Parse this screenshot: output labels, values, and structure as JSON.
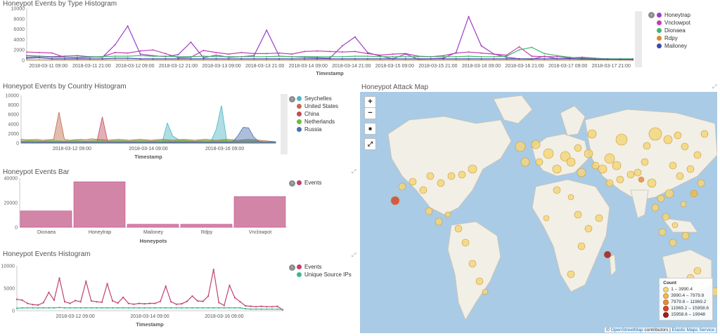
{
  "panels": {
    "type_histogram": {
      "title": "Honeypot Events by Type Histogram",
      "x_label": "Timestamp",
      "y_ticks": [
        "10000",
        "8000",
        "6000",
        "4000",
        "2000",
        "0"
      ],
      "x_ticks": [
        "2018-03-11 09:00",
        "2018-03-11 21:00",
        "2018-03-12 09:00",
        "2018-03-12 21:00",
        "2018-03-13 09:00",
        "2018-03-13 21:00",
        "2018-03-14 09:00",
        "2018-03-14 21:00",
        "2018-03-15 09:00",
        "2018-03-15 21:00",
        "2018-03-16 09:00",
        "2018-03-16 21:00",
        "2018-03-17 09:00",
        "2018-03-17 21:00"
      ],
      "legend": [
        {
          "label": "Honeytrap",
          "color": "#9b3fc6"
        },
        {
          "label": "Vnclowpot",
          "color": "#c23fb2"
        },
        {
          "label": "Dionaea",
          "color": "#3db86d"
        },
        {
          "label": "Rdpy",
          "color": "#d78c2b"
        },
        {
          "label": "Mailoney",
          "color": "#3f4aa8"
        }
      ]
    },
    "country_histogram": {
      "title": "Honeypot Events by Country Histogram",
      "x_label": "Timestamp",
      "y_ticks": [
        "10000",
        "8000",
        "6000",
        "4000",
        "2000",
        "0"
      ],
      "x_ticks": [
        "2018-03-12 09:00",
        "2018-03-14 09:00",
        "2018-03-16 09:00"
      ],
      "legend": [
        {
          "label": "Seychelles",
          "color": "#4bb6c4"
        },
        {
          "label": "United States",
          "color": "#c06a4e"
        },
        {
          "label": "China",
          "color": "#c24b5b"
        },
        {
          "label": "Netherlands",
          "color": "#6bbd3d"
        },
        {
          "label": "Russia",
          "color": "#4a6fb3"
        }
      ]
    },
    "events_bar": {
      "title": "Honeypot Events Bar",
      "x_label": "Honeypots",
      "y_ticks": [
        "40000",
        "20000",
        "0"
      ],
      "legend": [
        {
          "label": "Events",
          "color": "#c23f72"
        }
      ]
    },
    "events_histogram": {
      "title": "Honeypot Events Histogram",
      "x_label": "Timestamp",
      "y_ticks": [
        "10000",
        "5000",
        "0"
      ],
      "x_ticks": [
        "2018-03-12 09:00",
        "2018-03-14 09:00",
        "2018-03-16 09:00"
      ],
      "legend": [
        {
          "label": "Events",
          "color": "#c23f72"
        },
        {
          "label": "Unique Source IPs",
          "color": "#3db88a"
        }
      ]
    },
    "attack_map": {
      "title": "Honeypot Attack Map",
      "controls": {
        "zoom_in": "+",
        "zoom_out": "−",
        "draw": "■",
        "fit": "⤢"
      },
      "legend_title": "Count",
      "legend_ranges": [
        {
          "label": "1 – 3990.4",
          "color": "#f5d67a"
        },
        {
          "label": "3990.4 – 7979.8",
          "color": "#f1b84e"
        },
        {
          "label": "7979.8 – 11969.2",
          "color": "#ec8b3c"
        },
        {
          "label": "11969.2 – 15958.6",
          "color": "#d9472c"
        },
        {
          "label": "15958.6 – 19948",
          "color": "#a51d1d"
        }
      ],
      "attribution_prefix": "©",
      "attribution_osm": "OpenStreetMap",
      "attribution_mid": "contributors |",
      "attribution_ems": "Elastic Maps Service"
    }
  },
  "chart_data": [
    {
      "type": "line",
      "title": "Honeypot Events by Type Histogram",
      "xlabel": "Timestamp",
      "ylim": [
        0,
        10000
      ],
      "series": [
        {
          "name": "Honeytrap",
          "values": [
            900,
            800,
            700,
            800,
            900,
            700,
            600,
            3000,
            6600,
            1200,
            900,
            700,
            1100,
            3500,
            500,
            1000,
            600,
            700,
            900,
            5800,
            800,
            700,
            600,
            500,
            400,
            2800,
            4500,
            1500,
            800,
            300,
            1200,
            200,
            300,
            400,
            1500,
            8400,
            2800,
            1200,
            600,
            300,
            200,
            800,
            300,
            400,
            200,
            300,
            200,
            100,
            50
          ]
        },
        {
          "name": "Vnclowpot",
          "values": [
            1600,
            1500,
            1400,
            600,
            500,
            600,
            700,
            1500,
            1400,
            1800,
            2000,
            1300,
            500,
            600,
            1900,
            1500,
            1200,
            1500,
            1300,
            1300,
            1400,
            1200,
            1700,
            1800,
            1700,
            1600,
            1700,
            1300,
            1000,
            1200,
            1300,
            800,
            700,
            900,
            1400,
            1600,
            1400,
            1200,
            1000,
            2600,
            800,
            700,
            700,
            500,
            600,
            400,
            300,
            200,
            100
          ]
        },
        {
          "name": "Dionaea",
          "values": [
            600,
            700,
            600,
            600,
            600,
            700,
            700,
            800,
            800,
            900,
            800,
            800,
            700,
            700,
            800,
            700,
            700,
            700,
            700,
            700,
            800,
            700,
            700,
            700,
            700,
            700,
            800,
            800,
            700,
            700,
            700,
            700,
            700,
            700,
            700,
            800,
            700,
            700,
            800,
            2000,
            2500,
            1300,
            900,
            600,
            400,
            300,
            300,
            300,
            300
          ]
        },
        {
          "name": "Rdpy",
          "values": [
            100,
            100,
            100,
            100,
            100,
            100,
            100,
            100,
            100,
            100,
            100,
            100,
            100,
            100,
            100,
            100,
            100,
            100,
            100,
            100,
            100,
            100,
            100,
            100,
            100,
            100,
            100,
            100,
            100,
            100,
            100,
            100,
            100,
            100,
            100,
            100,
            100,
            100,
            100,
            100,
            100,
            100,
            100,
            100,
            100,
            100,
            100,
            100,
            100
          ]
        },
        {
          "name": "Mailoney",
          "values": [
            400,
            500,
            300,
            300,
            300,
            300,
            300,
            400,
            400,
            300,
            300,
            300,
            300,
            300,
            300,
            300,
            300,
            300,
            300,
            300,
            300,
            300,
            300,
            300,
            300,
            300,
            300,
            300,
            300,
            300,
            300,
            300,
            300,
            300,
            300,
            300,
            300,
            300,
            300,
            300,
            300,
            300,
            300,
            300,
            300,
            200,
            200,
            200,
            200
          ]
        }
      ]
    },
    {
      "type": "area",
      "title": "Honeypot Events by Country Histogram",
      "xlabel": "Timestamp",
      "ylim": [
        0,
        10000
      ],
      "series": [
        {
          "name": "Seychelles",
          "values": [
            0,
            0,
            0,
            0,
            0,
            0,
            0,
            0,
            0,
            0,
            0,
            0,
            0,
            0,
            0,
            0,
            0,
            0,
            0,
            0,
            0,
            0,
            0,
            0,
            0,
            0,
            0,
            4200,
            1500,
            800,
            500,
            300,
            300,
            300,
            200,
            300,
            2800,
            7900,
            300,
            200,
            0,
            0,
            0,
            0,
            0,
            0,
            0,
            0
          ]
        },
        {
          "name": "United States",
          "values": [
            800,
            700,
            700,
            800,
            600,
            700,
            800,
            6500,
            800,
            600,
            700,
            800,
            700,
            900,
            800,
            700,
            600,
            700,
            800,
            700,
            600,
            700,
            800,
            700,
            600,
            700,
            800,
            700,
            600,
            700,
            800,
            700,
            600,
            700,
            800,
            700,
            600,
            700,
            800,
            700,
            600,
            700,
            800,
            700,
            600,
            500,
            400,
            300
          ]
        },
        {
          "name": "China",
          "values": [
            300,
            300,
            300,
            300,
            300,
            300,
            300,
            300,
            300,
            300,
            300,
            300,
            300,
            300,
            300,
            5500,
            300,
            300,
            300,
            300,
            300,
            300,
            300,
            300,
            300,
            300,
            300,
            300,
            300,
            300,
            300,
            300,
            300,
            300,
            300,
            300,
            300,
            300,
            300,
            300,
            300,
            300,
            300,
            300,
            300,
            300,
            300,
            300
          ]
        },
        {
          "name": "Netherlands",
          "values": [
            400,
            500,
            600,
            500,
            400,
            500,
            600,
            500,
            400,
            500,
            600,
            500,
            400,
            500,
            600,
            500,
            400,
            500,
            600,
            500,
            400,
            500,
            600,
            500,
            400,
            500,
            600,
            500,
            400,
            500,
            600,
            500,
            400,
            500,
            600,
            500,
            400,
            500,
            600,
            500,
            400,
            500,
            600,
            500,
            400,
            300,
            300,
            200
          ]
        },
        {
          "name": "Russia",
          "values": [
            200,
            200,
            200,
            200,
            200,
            200,
            200,
            200,
            200,
            200,
            200,
            200,
            200,
            200,
            200,
            200,
            200,
            200,
            200,
            200,
            200,
            200,
            200,
            200,
            200,
            200,
            200,
            200,
            200,
            200,
            200,
            200,
            200,
            200,
            200,
            200,
            200,
            200,
            200,
            200,
            1500,
            3300,
            3200,
            1200,
            300,
            200,
            200,
            200
          ]
        }
      ]
    },
    {
      "type": "bar",
      "title": "Honeypot Events Bar",
      "xlabel": "Honeypots",
      "categories": [
        "Dionaea",
        "Honeytrap",
        "Mailoney",
        "Rdpy",
        "Vnclowpot"
      ],
      "values": [
        16000,
        44500,
        3000,
        3000,
        30000
      ],
      "ylim": [
        0,
        48000
      ]
    },
    {
      "type": "line",
      "title": "Honeypot Events Histogram",
      "xlabel": "Timestamp",
      "ylim": [
        0,
        11000
      ],
      "series": [
        {
          "name": "Events",
          "values": [
            2800,
            2600,
            1800,
            1500,
            1400,
            2000,
            4500,
            2600,
            8000,
            2200,
            1800,
            2500,
            2200,
            7200,
            2400,
            2200,
            2100,
            6600,
            2400,
            1900,
            3300,
            1800,
            1600,
            1800,
            1700,
            1800,
            1800,
            2300,
            6000,
            2200,
            1600,
            1700,
            2300,
            3600,
            2400,
            2300,
            3600,
            10100,
            2000,
            1300,
            6200,
            3200,
            2200,
            1200,
            1100,
            1000,
            1100,
            1000,
            1000,
            1100,
            200
          ]
        },
        {
          "name": "Unique Source IPs",
          "values": [
            600,
            700,
            700,
            700,
            700,
            700,
            700,
            700,
            800,
            700,
            700,
            700,
            700,
            700,
            700,
            700,
            700,
            700,
            700,
            700,
            700,
            700,
            700,
            700,
            700,
            700,
            700,
            700,
            700,
            700,
            700,
            700,
            700,
            700,
            700,
            700,
            700,
            700,
            700,
            700,
            700,
            700,
            700,
            500,
            400,
            400,
            400,
            400,
            400,
            400,
            300
          ]
        }
      ]
    }
  ]
}
